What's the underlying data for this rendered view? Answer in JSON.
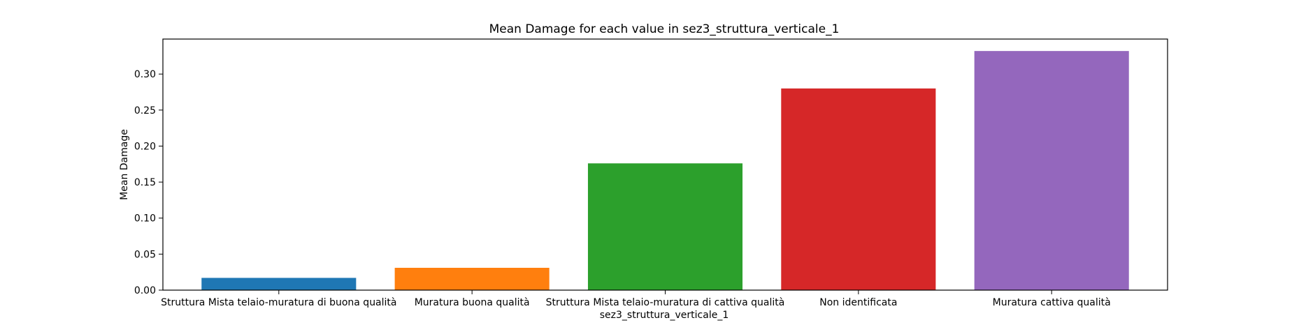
{
  "chart_data": {
    "type": "bar",
    "title": "Mean Damage for each value in sez3_struttura_verticale_1",
    "xlabel": "sez3_struttura_verticale_1",
    "ylabel": "Mean Damage",
    "categories": [
      "Struttura Mista telaio-muratura di buona qualità",
      "Muratura buona qualità",
      "Struttura Mista telaio-muratura di cattiva qualità",
      "Non identificata",
      "Muratura cattiva qualità"
    ],
    "values": [
      0.017,
      0.031,
      0.176,
      0.28,
      0.332
    ],
    "colors": [
      "#1f77b4",
      "#ff7f0e",
      "#2ca02c",
      "#d62728",
      "#9467bd"
    ],
    "yticks": [
      0.0,
      0.05,
      0.1,
      0.15,
      0.2,
      0.25,
      0.3
    ],
    "ytick_labels": [
      "0.00",
      "0.05",
      "0.10",
      "0.15",
      "0.20",
      "0.25",
      "0.30"
    ],
    "ylim": [
      0,
      0.3486
    ],
    "grid": false
  }
}
